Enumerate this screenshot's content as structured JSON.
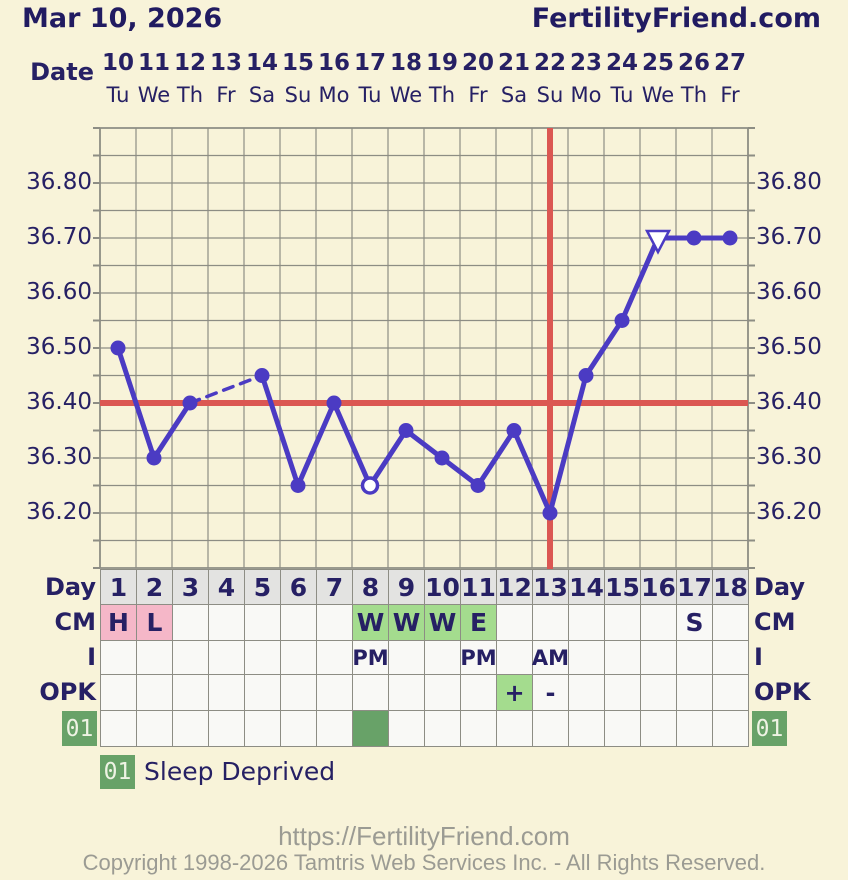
{
  "header": {
    "date_title": "Mar 10, 2026",
    "brand": "FertilityFriend.com"
  },
  "axis": {
    "date_label": "Date",
    "dates": [
      "10",
      "11",
      "12",
      "13",
      "14",
      "15",
      "16",
      "17",
      "18",
      "19",
      "20",
      "21",
      "22",
      "23",
      "24",
      "25",
      "26",
      "27"
    ],
    "weekdays": [
      "Tu",
      "We",
      "Th",
      "Fr",
      "Sa",
      "Su",
      "Mo",
      "Tu",
      "We",
      "Th",
      "Fr",
      "Sa",
      "Su",
      "Mo",
      "Tu",
      "We",
      "Th",
      "Fr"
    ],
    "temp_ticks": [
      "36.80",
      "36.70",
      "36.60",
      "36.50",
      "36.40",
      "36.30",
      "36.20"
    ]
  },
  "chart_data": {
    "type": "line",
    "title": "Basal body temperature by cycle day",
    "x_days": [
      1,
      2,
      3,
      4,
      5,
      6,
      7,
      8,
      9,
      10,
      11,
      12,
      13,
      14,
      15,
      16,
      17,
      18
    ],
    "series": [
      {
        "name": "temperature_c",
        "values": [
          36.5,
          36.3,
          36.4,
          null,
          36.45,
          36.25,
          36.4,
          36.25,
          36.35,
          36.3,
          36.25,
          36.35,
          36.2,
          36.45,
          36.55,
          36.7,
          36.7,
          36.7
        ]
      }
    ],
    "markers": {
      "8": "open-circle",
      "16": "open-triangle"
    },
    "missing_days": [
      4
    ],
    "coverline_temp": 36.4,
    "ovulation_day": 13,
    "ylim": [
      36.1,
      36.9
    ],
    "y_grid_step": 0.05,
    "x_columns": 18,
    "grid": true,
    "legend_position": "none"
  },
  "table": {
    "day_label": "Day",
    "days": [
      "1",
      "2",
      "3",
      "4",
      "5",
      "6",
      "7",
      "8",
      "9",
      "10",
      "11",
      "12",
      "13",
      "14",
      "15",
      "16",
      "17",
      "18"
    ],
    "rows": [
      {
        "label": "CM",
        "cells": [
          {
            "day": 1,
            "text": "H",
            "bg": "pink"
          },
          {
            "day": 2,
            "text": "L",
            "bg": "pink"
          },
          {
            "day": 8,
            "text": "W",
            "bg": "green"
          },
          {
            "day": 9,
            "text": "W",
            "bg": "green"
          },
          {
            "day": 10,
            "text": "W",
            "bg": "green"
          },
          {
            "day": 11,
            "text": "E",
            "bg": "green"
          },
          {
            "day": 17,
            "text": "S",
            "bg": "plain"
          }
        ]
      },
      {
        "label": "I",
        "cells": [
          {
            "day": 8,
            "text": "PM",
            "bg": "plain"
          },
          {
            "day": 11,
            "text": "PM",
            "bg": "plain"
          },
          {
            "day": 13,
            "text": "AM",
            "bg": "plain"
          }
        ]
      },
      {
        "label": "OPK",
        "cells": [
          {
            "day": 12,
            "text": "+",
            "bg": "green"
          },
          {
            "day": 13,
            "text": "-",
            "bg": "plain"
          }
        ]
      }
    ],
    "custom_row": {
      "label": "01",
      "filled_days": [
        8
      ]
    }
  },
  "legend": {
    "badge": "01",
    "text": "Sleep Deprived"
  },
  "footer": {
    "url": "https://FertilityFriend.com",
    "copyright": "Copyright 1998-2026 Tamtris Web Services Inc. - All Rights Reserved."
  },
  "colors": {
    "background": "#f8f3d9",
    "navy": "#262064",
    "line": "#4b3bc3",
    "red": "#db5752",
    "grid": "#8d8d84",
    "cell_bg": "#f9f9f6",
    "day_cell_bg": "#e3e3e1",
    "pink": "#f5b7c8",
    "light_green": "#a4dc8e",
    "dark_green": "#68a268",
    "footer_gray": "#9b9b93"
  }
}
